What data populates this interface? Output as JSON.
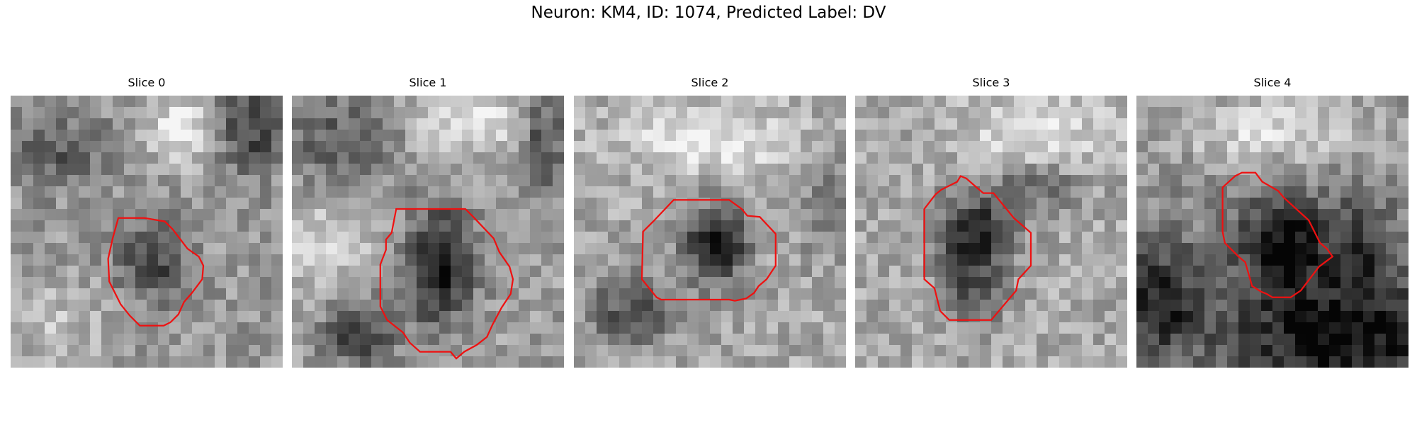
{
  "figure": {
    "title": "Neuron: KM4, ID: 1074, Predicted Label: DV"
  },
  "colors": {
    "contour": "#ee1111",
    "background": "#ffffff"
  },
  "panels": [
    {
      "title": "Slice 0"
    },
    {
      "title": "Slice 1"
    },
    {
      "title": "Slice 2"
    },
    {
      "title": "Slice 3"
    },
    {
      "title": "Slice 4"
    }
  ]
}
